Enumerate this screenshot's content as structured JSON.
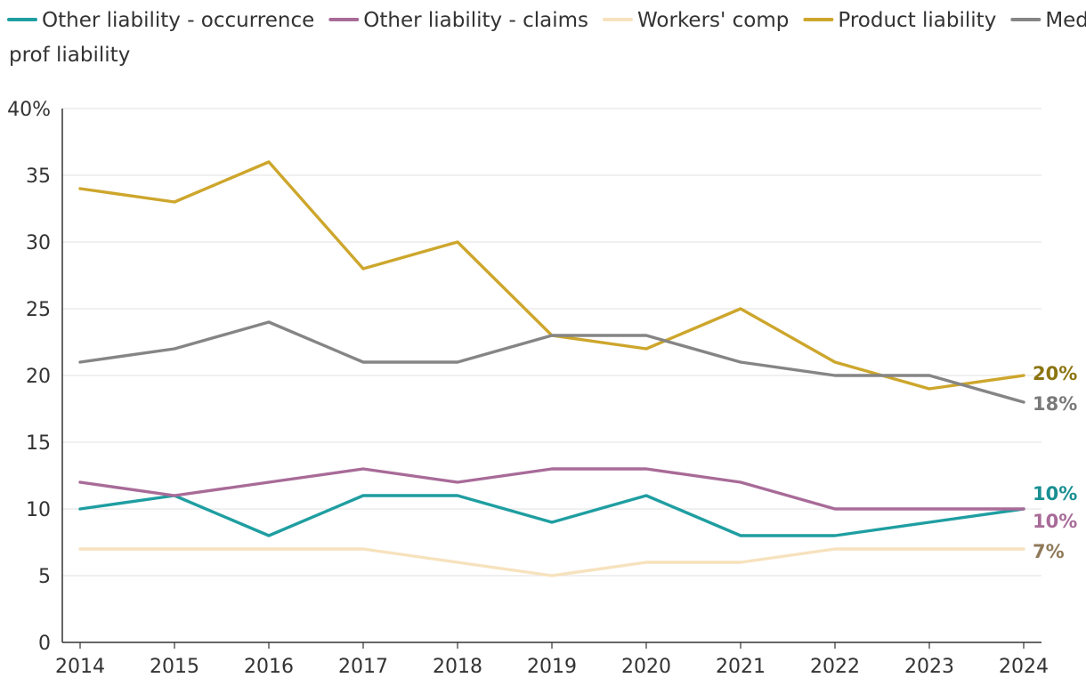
{
  "chart_data": {
    "type": "line",
    "title": "",
    "xlabel": "",
    "ylabel": "",
    "x": [
      "2014",
      "2015",
      "2016",
      "2017",
      "2018",
      "2019",
      "2020",
      "2021",
      "2022",
      "2023",
      "2024"
    ],
    "y_tick_labels": [
      "0",
      "5",
      "10",
      "15",
      "20",
      "25",
      "30",
      "35",
      "40%"
    ],
    "ylim": [
      0,
      40
    ],
    "grid": true,
    "legend_position": "top",
    "series": [
      {
        "name": "Other liability - occurrence",
        "color": "#1f9ea1",
        "values": [
          10,
          11,
          8,
          11,
          11,
          9,
          11,
          8,
          8,
          9,
          10
        ],
        "end_label": "10%",
        "end_label_color": "#1a8f92"
      },
      {
        "name": "Other liability - claims",
        "color": "#a86b98",
        "values": [
          12,
          11,
          12,
          13,
          12,
          13,
          13,
          12,
          10,
          10,
          10
        ],
        "end_label": "10%",
        "end_label_color": "#a86b98"
      },
      {
        "name": "Workers' comp",
        "color": "#f6e2bd",
        "values": [
          7,
          7,
          7,
          7,
          6,
          5,
          6,
          6,
          7,
          7,
          7
        ],
        "end_label": "7%",
        "end_label_color": "#8f7a5a"
      },
      {
        "name": "Product liability",
        "color": "#cda62c",
        "values": [
          34,
          33,
          36,
          28,
          30,
          23,
          22,
          25,
          21,
          19,
          20
        ],
        "end_label": "20%",
        "end_label_color": "#8c7511"
      },
      {
        "name": "Med prof liability",
        "color": "#858585",
        "values": [
          21,
          22,
          24,
          21,
          21,
          23,
          23,
          21,
          20,
          20,
          18
        ],
        "end_label": "18%",
        "end_label_color": "#7a7a7a"
      }
    ]
  }
}
